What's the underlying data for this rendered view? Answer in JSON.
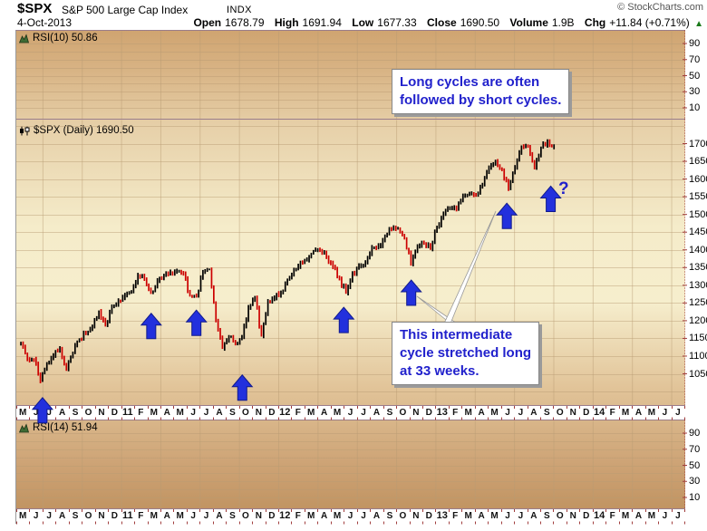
{
  "header": {
    "symbol": "$SPX",
    "name": "S&P 500 Large Cap Index",
    "exchange": "INDX",
    "date": "4-Oct-2013",
    "credit": "© StockCharts.com",
    "quote": {
      "open_label": "Open",
      "open": "1678.79",
      "high_label": "High",
      "high": "1691.94",
      "low_label": "Low",
      "low": "1677.33",
      "close_label": "Close",
      "close": "1690.50",
      "volume_label": "Volume",
      "volume": "1.9B",
      "chg_label": "Chg",
      "chg": "+11.84 (+0.71%)",
      "up_arrow": "▲"
    }
  },
  "panels": {
    "rsi_top_label": "RSI(10) 50.86",
    "price_label": "$SPX (Daily) 1690.50",
    "rsi_bottom_label": "RSI(14) 51.94"
  },
  "annotations": {
    "note1_line1": "Long cycles are often",
    "note1_line2": "followed by short cycles.",
    "note2_line1": "This intermediate",
    "note2_line2": "cycle stretched long",
    "note2_line3": "at 33 weeks.",
    "question_mark": "?"
  },
  "chart_data": {
    "type": "candlestick",
    "title": "$SPX (Daily)",
    "symbol": "$SPX",
    "timeframe": "Daily",
    "last_close": 1690.5,
    "ohlc": {
      "open": 1678.79,
      "high": 1691.94,
      "low": 1677.33,
      "close": 1690.5,
      "volume": "1.9B",
      "change": "+11.84",
      "change_pct": "+0.71%"
    },
    "x_axis": {
      "start": "May-2010",
      "end": "Jul-2014",
      "data_end": "Oct-2013",
      "labels": [
        "M",
        "J",
        "J",
        "A",
        "S",
        "O",
        "N",
        "D",
        "11",
        "F",
        "M",
        "A",
        "M",
        "J",
        "J",
        "A",
        "S",
        "O",
        "N",
        "D",
        "12",
        "F",
        "M",
        "A",
        "M",
        "J",
        "J",
        "A",
        "S",
        "O",
        "N",
        "D",
        "13",
        "F",
        "M",
        "A",
        "M",
        "J",
        "J",
        "A",
        "S",
        "O",
        "N",
        "D",
        "14",
        "F",
        "M",
        "A",
        "M",
        "J",
        "J"
      ]
    },
    "y_axis": {
      "ticks": [
        1700,
        1650,
        1600,
        1550,
        1500,
        1450,
        1400,
        1350,
        1300,
        1250,
        1200,
        1150,
        1100,
        1050
      ],
      "grid": true
    },
    "indicators": [
      {
        "name": "RSI(10)",
        "value": 50.86,
        "ticks": [
          90,
          70,
          50,
          30,
          10
        ],
        "position": "top"
      },
      {
        "name": "RSI(14)",
        "value": 51.94,
        "ticks": [
          90,
          70,
          50,
          30,
          10
        ],
        "position": "bottom"
      }
    ],
    "series": [
      {
        "name": "$SPX close (approx. biweekly)",
        "t0_month_offset": 0.35,
        "dt_months": 0.49634,
        "closes": [
          1135,
          1089,
          1091,
          1031,
          1078,
          1102,
          1121,
          1064,
          1109,
          1148,
          1165,
          1183,
          1225,
          1189,
          1240,
          1257,
          1271,
          1283,
          1329,
          1320,
          1279,
          1313,
          1328,
          1337,
          1340,
          1333,
          1271,
          1268,
          1339,
          1345,
          1199,
          1123,
          1154,
          1136,
          1155,
          1238,
          1264,
          1158,
          1255,
          1265,
          1278,
          1315,
          1343,
          1366,
          1371,
          1397,
          1398,
          1378,
          1353,
          1318,
          1278,
          1335,
          1355,
          1363,
          1406,
          1411,
          1438,
          1460,
          1461,
          1433,
          1360,
          1409,
          1418,
          1402,
          1466,
          1503,
          1518,
          1516,
          1551,
          1557,
          1553,
          1582,
          1633,
          1650,
          1627,
          1573,
          1632,
          1692,
          1691,
          1633,
          1688,
          1710,
          1691
        ]
      }
    ],
    "cycle_low_arrows": [
      {
        "date": "Jul-2010",
        "low": 1011,
        "m": 2.0
      },
      {
        "date": "Mar-2011",
        "low": 1249,
        "m": 10.3
      },
      {
        "date": "Jun-2011",
        "low": 1258,
        "m": 13.75
      },
      {
        "date": "Oct-2011",
        "low": 1075,
        "m": 17.25
      },
      {
        "date": "Jun-2012",
        "low": 1266,
        "m": 25.0
      },
      {
        "date": "Nov-2012",
        "low": 1343,
        "m": 30.15
      },
      {
        "date": "Jun-2013",
        "low": 1560,
        "m": 37.45
      },
      {
        "date": "Oct-2013",
        "low": 1608,
        "m": 40.8,
        "projected": true
      }
    ],
    "colors": {
      "up_candle": "#000000",
      "down_candle": "#cc0000",
      "arrow": "#2230dd",
      "annotation_text": "#2121cc",
      "axis_dotted": "#a03c3c"
    }
  }
}
